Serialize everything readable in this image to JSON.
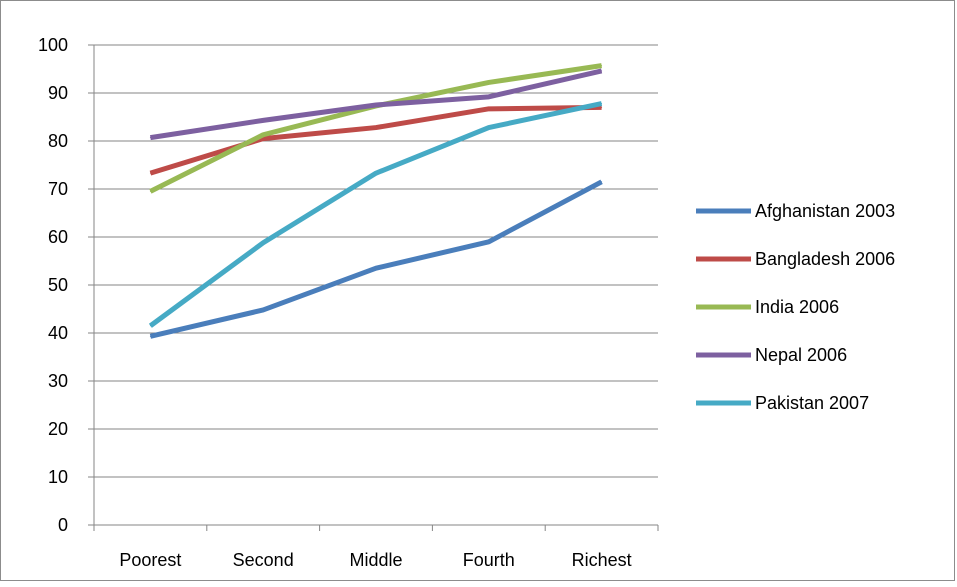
{
  "chart_data": {
    "type": "line",
    "categories": [
      "Poorest",
      "Second",
      "Middle",
      "Fourth",
      "Richest"
    ],
    "ylim": [
      0,
      100
    ],
    "yticks": [
      0,
      10,
      20,
      30,
      40,
      50,
      60,
      70,
      80,
      90,
      100
    ],
    "grid": "horizontal",
    "legend_position": "right",
    "series": [
      {
        "name": "Afghanistan 2003",
        "color": "#4a7ebb",
        "values": [
          39.3,
          44.8,
          53.5,
          59.0,
          71.5
        ]
      },
      {
        "name": "Bangladesh 2006",
        "color": "#be4b48",
        "values": [
          73.3,
          80.5,
          82.8,
          86.7,
          87.0
        ]
      },
      {
        "name": "India 2006",
        "color": "#98b954",
        "values": [
          69.5,
          81.3,
          87.3,
          92.2,
          95.7
        ]
      },
      {
        "name": "Nepal 2006",
        "color": "#7d60a0",
        "values": [
          80.7,
          84.3,
          87.5,
          89.2,
          94.6
        ]
      },
      {
        "name": "Pakistan 2007",
        "color": "#46aac5",
        "values": [
          41.5,
          58.8,
          73.3,
          82.8,
          87.8
        ]
      }
    ]
  }
}
